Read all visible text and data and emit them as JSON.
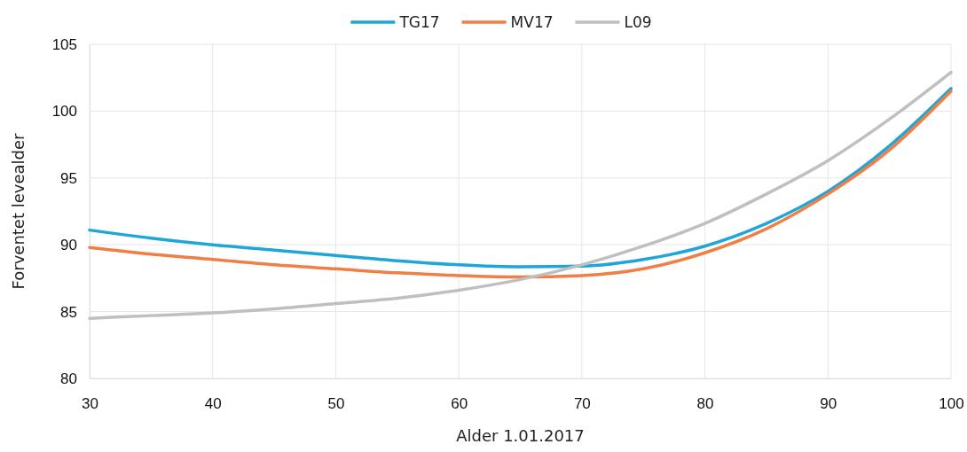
{
  "chart_data": {
    "type": "line",
    "xlabel": "Alder 1.01.2017",
    "ylabel": "Forventet levealder",
    "x": [
      30,
      35,
      40,
      45,
      50,
      55,
      60,
      65,
      70,
      75,
      80,
      85,
      90,
      95,
      100
    ],
    "series": [
      {
        "name": "TG17",
        "color": "#1fa6d8",
        "values": [
          91.1,
          90.5,
          90.0,
          89.6,
          89.2,
          88.8,
          88.5,
          88.35,
          88.4,
          88.9,
          89.9,
          91.6,
          94.0,
          97.4,
          101.7
        ]
      },
      {
        "name": "MV17",
        "color": "#f07f45",
        "values": [
          89.8,
          89.3,
          88.9,
          88.5,
          88.2,
          87.9,
          87.7,
          87.6,
          87.7,
          88.2,
          89.4,
          91.2,
          93.8,
          97.1,
          101.5
        ]
      },
      {
        "name": "L09",
        "color": "#bfbfbf",
        "values": [
          84.5,
          84.7,
          84.9,
          85.2,
          85.6,
          86.0,
          86.6,
          87.4,
          88.5,
          89.9,
          91.6,
          93.8,
          96.3,
          99.4,
          102.9
        ]
      }
    ],
    "xlim": [
      30,
      100
    ],
    "xticks": [
      30,
      40,
      50,
      60,
      70,
      80,
      90,
      100
    ],
    "ylim": [
      80,
      105
    ],
    "yticks": [
      80,
      85,
      90,
      95,
      100,
      105
    ],
    "grid": true,
    "legend": "top",
    "marker": "none",
    "line_style": "solid"
  }
}
